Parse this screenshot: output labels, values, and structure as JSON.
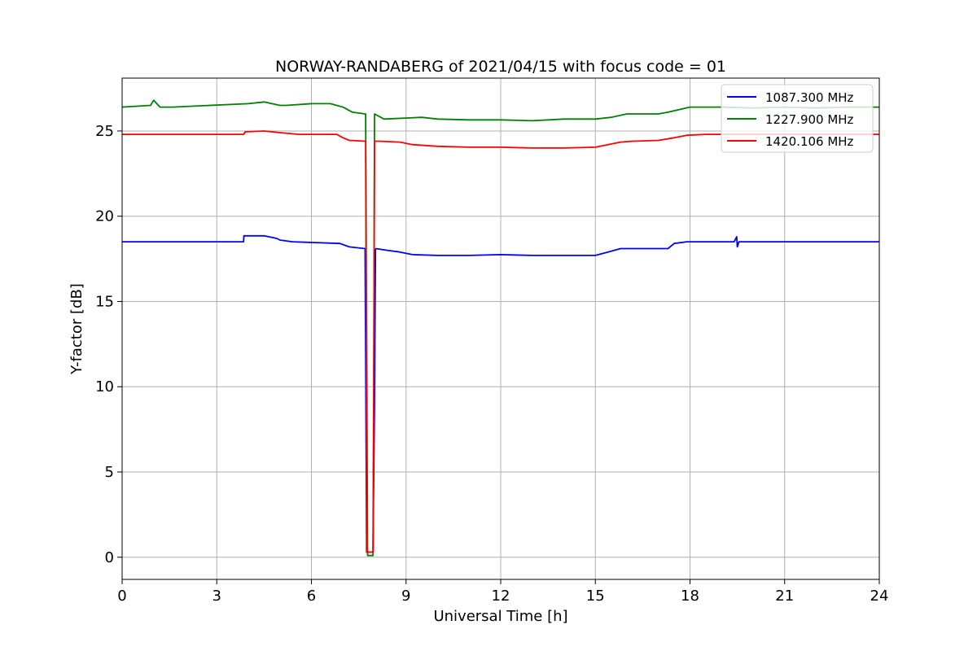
{
  "chart_data": {
    "type": "line",
    "title": "NORWAY-RANDABERG of 2021/04/15 with focus code = 01",
    "xlabel": "Universal Time [h]",
    "ylabel": "Y-factor [dB]",
    "xlim": [
      0,
      24
    ],
    "ylim": [
      -1.3,
      28.1
    ],
    "xticks": [
      0,
      3,
      6,
      9,
      12,
      15,
      18,
      21,
      24
    ],
    "yticks": [
      0,
      5,
      10,
      15,
      20,
      25
    ],
    "grid": true,
    "legend_position": "top-right",
    "series": [
      {
        "name": "1087.300 MHz",
        "color": "#0000ff",
        "x": [
          0,
          3.85,
          3.86,
          4.5,
          4.9,
          5.0,
          5.4,
          6.9,
          7.2,
          7.7,
          7.72,
          7.75,
          7.8,
          7.95,
          8.0,
          8.03,
          8.05,
          8.4,
          8.8,
          9.2,
          10,
          11,
          12,
          13,
          14,
          15,
          15.4,
          15.8,
          16.5,
          17.3,
          17.5,
          17.9,
          19.4,
          19.48,
          19.5,
          19.55,
          20.5,
          22,
          24
        ],
        "y": [
          18.5,
          18.5,
          18.85,
          18.85,
          18.7,
          18.6,
          18.5,
          18.4,
          18.2,
          18.1,
          12,
          0.3,
          0.3,
          0.3,
          9,
          18.05,
          18.1,
          18.0,
          17.9,
          17.75,
          17.7,
          17.7,
          17.75,
          17.7,
          17.7,
          17.7,
          17.9,
          18.1,
          18.1,
          18.1,
          18.4,
          18.5,
          18.5,
          18.8,
          18.2,
          18.5,
          18.5,
          18.5,
          18.5
        ]
      },
      {
        "name": "1227.900 MHz",
        "color": "#008000",
        "x": [
          0,
          0.9,
          1.0,
          1.2,
          1.6,
          4.0,
          4.5,
          5.0,
          5.2,
          6.0,
          6.6,
          7.0,
          7.3,
          7.7,
          7.72,
          7.78,
          7.95,
          7.98,
          8.0,
          8.3,
          9.5,
          10,
          11,
          12,
          13,
          14,
          15,
          15.5,
          16,
          17.0,
          17.3,
          18,
          19,
          20,
          21,
          22,
          23,
          24
        ],
        "y": [
          26.4,
          26.5,
          26.8,
          26.4,
          26.4,
          26.6,
          26.7,
          26.5,
          26.5,
          26.6,
          26.6,
          26.4,
          26.1,
          26.0,
          26.0,
          0.1,
          0.1,
          12,
          26.0,
          25.7,
          25.8,
          25.7,
          25.65,
          25.65,
          25.6,
          25.7,
          25.7,
          25.8,
          26.0,
          26.0,
          26.1,
          26.4,
          26.4,
          26.35,
          26.4,
          26.35,
          26.4,
          26.4
        ]
      },
      {
        "name": "1420.106 MHz",
        "color": "#ff0000",
        "x": [
          0,
          3.85,
          3.9,
          4.5,
          5.0,
          5.6,
          6.8,
          7.0,
          7.2,
          7.7,
          7.72,
          7.76,
          7.9,
          7.96,
          8.0,
          8.1,
          8.8,
          9.2,
          10,
          11,
          12,
          13,
          14,
          15,
          15.4,
          15.8,
          16.2,
          17,
          17.5,
          17.9,
          18.5,
          20,
          22,
          24
        ],
        "y": [
          24.8,
          24.8,
          24.95,
          25.0,
          24.9,
          24.8,
          24.8,
          24.6,
          24.45,
          24.4,
          24.4,
          0.3,
          0.3,
          0.3,
          24.4,
          24.4,
          24.35,
          24.2,
          24.1,
          24.05,
          24.05,
          24.0,
          24.0,
          24.05,
          24.2,
          24.35,
          24.4,
          24.45,
          24.6,
          24.75,
          24.8,
          24.8,
          24.8,
          24.8
        ]
      }
    ]
  }
}
